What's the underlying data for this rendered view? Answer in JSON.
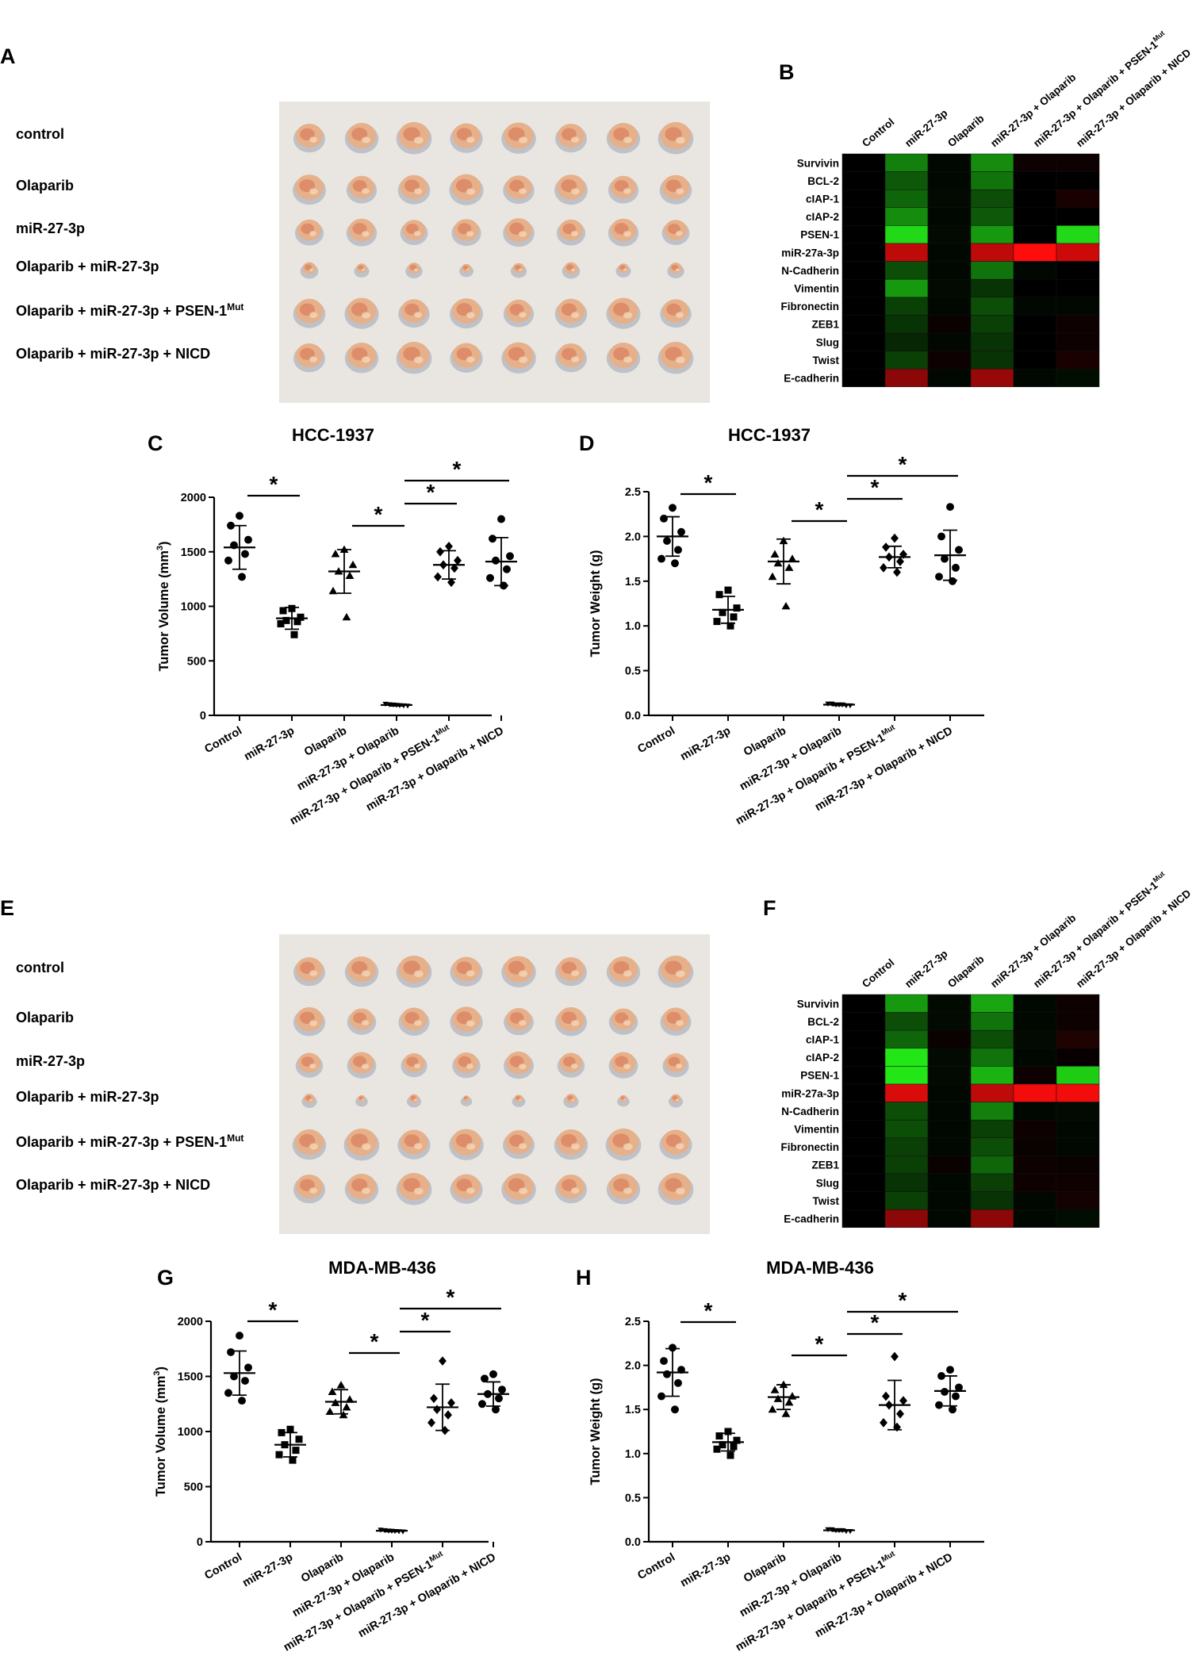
{
  "colors": {
    "heat_green": "#22ff22",
    "heat_red": "#ff1111",
    "heat_black": "#000000"
  },
  "top": {
    "photo": {
      "letter": "A",
      "rows": [
        "control",
        "Olaparib",
        "miR-27-3p",
        "Olaparib + miR-27-3p",
        "Olaparib + miR-27-3p + PSEN-1",
        "Olaparib + miR-27-3p + NICD"
      ],
      "mut": "Mut",
      "row_sizes": [
        1.0,
        0.95,
        0.85,
        0.35,
        0.95,
        1.0
      ]
    },
    "heatmap": {
      "letter": "B",
      "columns": [
        "Control",
        "miR-27-3p",
        "Olaparib",
        "miR-27-3p + Olaparib",
        "miR-27-3p + Olaparib + PSEN-1",
        "miR-27-3p + Olaparib + NICD"
      ],
      "col_mut": "Mut",
      "rows": [
        "Survivin",
        "BCL-2",
        "cIAP-1",
        "cIAP-2",
        "PSEN-1",
        "miR-27a-3p",
        "N-Cadherin",
        "Vimentin",
        "Fibronectin",
        "ZEB1",
        "Slug",
        "Twist",
        "E-cadherin"
      ],
      "values": [
        [
          0,
          0.5,
          0.03,
          0.55,
          -0.05,
          -0.05
        ],
        [
          0,
          0.35,
          0.03,
          0.45,
          0,
          0
        ],
        [
          0,
          0.4,
          0.04,
          0.3,
          0,
          -0.1
        ],
        [
          0,
          0.55,
          0.03,
          0.35,
          0,
          0
        ],
        [
          0,
          0.85,
          0.04,
          0.6,
          0,
          0.85
        ],
        [
          0,
          -0.75,
          0.03,
          -0.75,
          -1,
          -0.8
        ],
        [
          0,
          0.3,
          0.03,
          0.45,
          0.03,
          0
        ],
        [
          0,
          0.6,
          0.04,
          0.2,
          0,
          0
        ],
        [
          0,
          0.25,
          0.03,
          0.3,
          0.03,
          0.03
        ],
        [
          0,
          0.2,
          -0.04,
          0.25,
          0,
          -0.05
        ],
        [
          0,
          0.15,
          0.03,
          0.2,
          0,
          -0.05
        ],
        [
          0,
          0.25,
          -0.05,
          0.2,
          0,
          -0.1
        ],
        [
          0,
          -0.55,
          0.03,
          -0.6,
          0.03,
          0.05
        ]
      ]
    },
    "volume": {
      "letter": "C",
      "title": "HCC-1937",
      "ylabel": "Tumor Volume (mm",
      "ylabel_sup": "3",
      "ylabel_close": ")",
      "yticks": [
        "0",
        "500",
        "1000",
        "1500",
        "2000"
      ],
      "ymax": 2000,
      "star": "*"
    },
    "weight": {
      "letter": "D",
      "title": "HCC-1937",
      "ylabel": "Tumor Weight (g)",
      "yticks": [
        "0.0",
        "0.5",
        "1.0",
        "1.5",
        "2.0",
        "2.5"
      ],
      "ymax": 2.5,
      "star": "*"
    }
  },
  "bottom": {
    "photo": {
      "letter": "E",
      "rows": [
        "control",
        "Olaparib",
        "miR-27-3p",
        "Olaparib + miR-27-3p",
        "Olaparib + miR-27-3p + PSEN-1",
        "Olaparib + miR-27-3p + NICD"
      ],
      "mut": "Mut",
      "row_sizes": [
        1.0,
        0.9,
        0.8,
        0.25,
        1.0,
        1.0
      ]
    },
    "heatmap": {
      "letter": "F",
      "columns": [
        "Control",
        "miR-27-3p",
        "Olaparib",
        "miR-27-3p + Olaparib",
        "miR-27-3p + Olaparib + PSEN-1",
        "miR-27-3p + Olaparib + NICD"
      ],
      "col_mut": "Mut",
      "rows": [
        "Survivin",
        "BCL-2",
        "cIAP-1",
        "cIAP-2",
        "PSEN-1",
        "miR-27a-3p",
        "N-Cadherin",
        "Vimentin",
        "Fibronectin",
        "ZEB1",
        "Slug",
        "Twist",
        "E-cadherin"
      ],
      "values": [
        [
          0,
          0.6,
          0.04,
          0.65,
          0.03,
          -0.05
        ],
        [
          0,
          0.3,
          0.04,
          0.45,
          0.03,
          -0.05
        ],
        [
          0,
          0.4,
          -0.04,
          0.3,
          0.04,
          -0.12
        ],
        [
          0,
          0.9,
          0.04,
          0.45,
          0.03,
          -0.03
        ],
        [
          0,
          0.9,
          0.04,
          0.7,
          -0.05,
          0.8
        ],
        [
          0,
          -0.85,
          0.03,
          -0.75,
          -0.95,
          -0.95
        ],
        [
          0,
          0.3,
          0.03,
          0.5,
          0.03,
          0.04
        ],
        [
          0,
          0.3,
          0.03,
          0.25,
          -0.05,
          0.03
        ],
        [
          0,
          0.25,
          0.03,
          0.3,
          -0.04,
          0.03
        ],
        [
          0,
          0.25,
          -0.04,
          0.4,
          -0.05,
          -0.04
        ],
        [
          0,
          0.2,
          0.03,
          0.25,
          -0.06,
          -0.06
        ],
        [
          0,
          0.25,
          0.03,
          0.2,
          0.03,
          -0.08
        ],
        [
          0,
          -0.55,
          0.03,
          -0.55,
          0.03,
          0.05
        ]
      ]
    },
    "volume": {
      "letter": "G",
      "title": "MDA-MB-436",
      "ylabel": "Tumor Volume (mm",
      "ylabel_sup": "3",
      "ylabel_close": ")",
      "yticks": [
        "0",
        "500",
        "1000",
        "1500",
        "2000"
      ],
      "ymax": 2000,
      "star": "*"
    },
    "weight": {
      "letter": "H",
      "title": "MDA-MB-436",
      "ylabel": "Tumor Weight (g)",
      "yticks": [
        "0.0",
        "0.5",
        "1.0",
        "1.5",
        "2.0",
        "2.5"
      ],
      "ymax": 2.5,
      "star": "*"
    }
  },
  "xcats": [
    "Control",
    "miR-27-3p",
    "Olaparib",
    "miR-27-3p + Olaparib",
    "miR-27-3p + Olaparib + PSEN-1",
    "miR-27-3p + Olaparib + NICD"
  ],
  "xcat_mut": "Mut",
  "chart_data": [
    {
      "type": "scatter",
      "title": "HCC-1937",
      "ylabel": "Tumor Volume (mm3)",
      "ylim": [
        0,
        2000
      ],
      "categories": [
        "Control",
        "miR-27-3p",
        "Olaparib",
        "miR-27-3p + Olaparib",
        "miR-27-3p + Olaparib + PSEN-1Mut",
        "miR-27-3p + Olaparib + NICD"
      ],
      "means": [
        1540,
        890,
        1320,
        95,
        1380,
        1410
      ],
      "sd": [
        200,
        100,
        200,
        8,
        130,
        220
      ],
      "points": [
        [
          1830,
          1740,
          1610,
          1560,
          1480,
          1420,
          1270
        ],
        [
          980,
          960,
          900,
          870,
          860,
          840,
          740
        ],
        [
          1520,
          1480,
          1380,
          1320,
          1280,
          1140,
          900
        ],
        [
          105,
          100,
          98,
          95,
          92,
          90,
          88
        ],
        [
          1550,
          1500,
          1420,
          1380,
          1350,
          1270,
          1220
        ],
        [
          1800,
          1620,
          1460,
          1420,
          1340,
          1260,
          1190
        ]
      ],
      "significance": [
        [
          0,
          1
        ],
        [
          2,
          3
        ],
        [
          3,
          4
        ],
        [
          3,
          5
        ]
      ]
    },
    {
      "type": "scatter",
      "title": "HCC-1937",
      "ylabel": "Tumor Weight (g)",
      "ylim": [
        0,
        2.5
      ],
      "categories": [
        "Control",
        "miR-27-3p",
        "Olaparib",
        "miR-27-3p + Olaparib",
        "miR-27-3p + Olaparib + PSEN-1Mut",
        "miR-27-3p + Olaparib + NICD"
      ],
      "means": [
        2.0,
        1.18,
        1.72,
        0.12,
        1.77,
        1.79
      ],
      "sd": [
        0.22,
        0.15,
        0.25,
        0.01,
        0.12,
        0.28
      ],
      "points": [
        [
          2.32,
          2.2,
          2.05,
          1.95,
          1.85,
          1.75,
          1.7
        ],
        [
          1.4,
          1.35,
          1.2,
          1.15,
          1.1,
          1.05,
          1.0
        ],
        [
          1.95,
          1.8,
          1.75,
          1.7,
          1.65,
          1.55,
          1.22
        ],
        [
          0.13,
          0.13,
          0.12,
          0.12,
          0.12,
          0.11,
          0.11
        ],
        [
          1.98,
          1.88,
          1.8,
          1.77,
          1.72,
          1.65,
          1.6
        ],
        [
          2.33,
          2.0,
          1.85,
          1.75,
          1.65,
          1.55,
          1.5
        ]
      ],
      "significance": [
        [
          0,
          1
        ],
        [
          2,
          3
        ],
        [
          3,
          4
        ],
        [
          3,
          5
        ]
      ]
    },
    {
      "type": "scatter",
      "title": "MDA-MB-436",
      "ylabel": "Tumor Volume (mm3)",
      "ylim": [
        0,
        2000
      ],
      "categories": [
        "Control",
        "miR-27-3p",
        "Olaparib",
        "miR-27-3p + Olaparib",
        "miR-27-3p + Olaparib + PSEN-1Mut",
        "miR-27-3p + Olaparib + NICD"
      ],
      "means": [
        1530,
        880,
        1270,
        100,
        1220,
        1340
      ],
      "sd": [
        200,
        110,
        110,
        8,
        210,
        110
      ],
      "points": [
        [
          1870,
          1720,
          1580,
          1500,
          1460,
          1350,
          1280
        ],
        [
          1020,
          990,
          930,
          880,
          830,
          790,
          740
        ],
        [
          1420,
          1360,
          1290,
          1260,
          1220,
          1180,
          1150
        ],
        [
          108,
          104,
          100,
          98,
          96,
          94,
          92
        ],
        [
          1640,
          1300,
          1260,
          1200,
          1150,
          1080,
          1010
        ],
        [
          1520,
          1480,
          1380,
          1340,
          1300,
          1250,
          1200
        ]
      ],
      "significance": [
        [
          0,
          1
        ],
        [
          2,
          3
        ],
        [
          3,
          4
        ],
        [
          3,
          5
        ]
      ]
    },
    {
      "type": "scatter",
      "title": "MDA-MB-436",
      "ylabel": "Tumor Weight (g)",
      "ylim": [
        0,
        2.5
      ],
      "categories": [
        "Control",
        "miR-27-3p",
        "Olaparib",
        "miR-27-3p + Olaparib",
        "miR-27-3p + Olaparib + PSEN-1Mut",
        "miR-27-3p + Olaparib + NICD"
      ],
      "means": [
        1.92,
        1.13,
        1.64,
        0.13,
        1.55,
        1.71
      ],
      "sd": [
        0.27,
        0.1,
        0.14,
        0.01,
        0.28,
        0.17
      ],
      "points": [
        [
          2.2,
          2.05,
          1.95,
          1.9,
          1.8,
          1.65,
          1.5
        ],
        [
          1.25,
          1.2,
          1.15,
          1.1,
          1.08,
          1.05,
          0.98
        ],
        [
          1.78,
          1.72,
          1.65,
          1.62,
          1.58,
          1.5,
          1.45
        ],
        [
          0.14,
          0.14,
          0.13,
          0.13,
          0.13,
          0.12,
          0.12
        ],
        [
          2.1,
          1.65,
          1.6,
          1.55,
          1.45,
          1.35,
          1.3
        ],
        [
          1.95,
          1.88,
          1.75,
          1.7,
          1.65,
          1.55,
          1.5
        ]
      ],
      "significance": [
        [
          0,
          1
        ],
        [
          2,
          3
        ],
        [
          3,
          4
        ],
        [
          3,
          5
        ]
      ]
    }
  ]
}
